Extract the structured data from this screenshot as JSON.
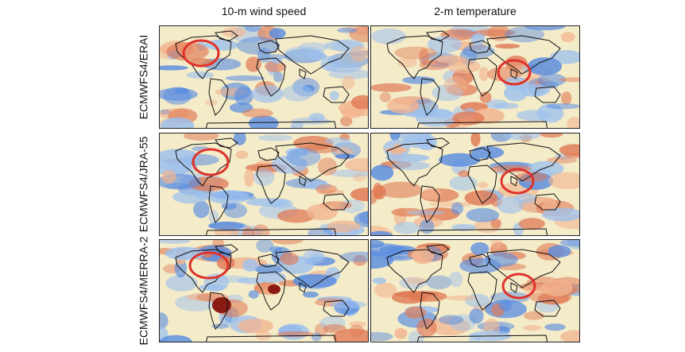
{
  "columns": [
    "10-m wind speed",
    "2-m temperature"
  ],
  "rows": [
    "ECMWFS4/ERAI",
    "ECMWFS4/JRA-55",
    "ECMWFS4/MERRA-2"
  ],
  "colors": {
    "highlight_circle": "#e0322a",
    "blue": "#4a7fd6",
    "red": "#c8402a",
    "neutral": "#f4ebc9",
    "coast": "#111111"
  }
}
